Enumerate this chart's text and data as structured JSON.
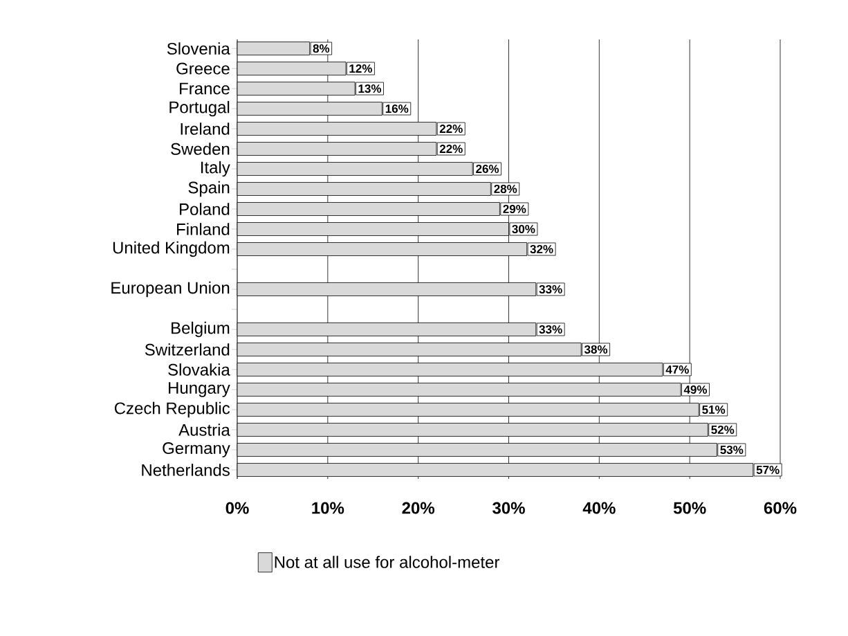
{
  "chart_data": {
    "type": "bar",
    "orientation": "horizontal",
    "categories": [
      "Slovenia",
      "Greece",
      "France",
      "Portugal",
      "Ireland",
      "Sweden",
      "Italy",
      "Spain",
      "Poland",
      "Finland",
      "United Kingdom",
      null,
      "European Union",
      null,
      "Belgium",
      "Switzerland",
      "Slovakia",
      "Hungary",
      "Czech Republic",
      "Austria",
      "Germany",
      "Netherlands"
    ],
    "series": [
      {
        "name": "Not at all use for alcohol-meter",
        "color": "#d9d9d9",
        "values": [
          8,
          12,
          13,
          16,
          22,
          22,
          26,
          28,
          29,
          30,
          32,
          null,
          33,
          null,
          33,
          38,
          47,
          49,
          51,
          52,
          53,
          57
        ],
        "value_labels": [
          "8%",
          "12%",
          "13%",
          "16%",
          "22%",
          "22%",
          "26%",
          "28%",
          "29%",
          "30%",
          "32%",
          null,
          "33%",
          null,
          "33%",
          "38%",
          "47%",
          "49%",
          "51%",
          "52%",
          "53%",
          "57%"
        ]
      }
    ],
    "xlim": [
      0,
      60
    ],
    "xticks": [
      {
        "value": 0,
        "label": "0%"
      },
      {
        "value": 10,
        "label": "10%"
      },
      {
        "value": 20,
        "label": "20%"
      },
      {
        "value": 30,
        "label": "30%"
      },
      {
        "value": 40,
        "label": "40%"
      },
      {
        "value": 50,
        "label": "50%"
      },
      {
        "value": 60,
        "label": "60%"
      }
    ],
    "grid": "x",
    "legend": "bottom left"
  }
}
